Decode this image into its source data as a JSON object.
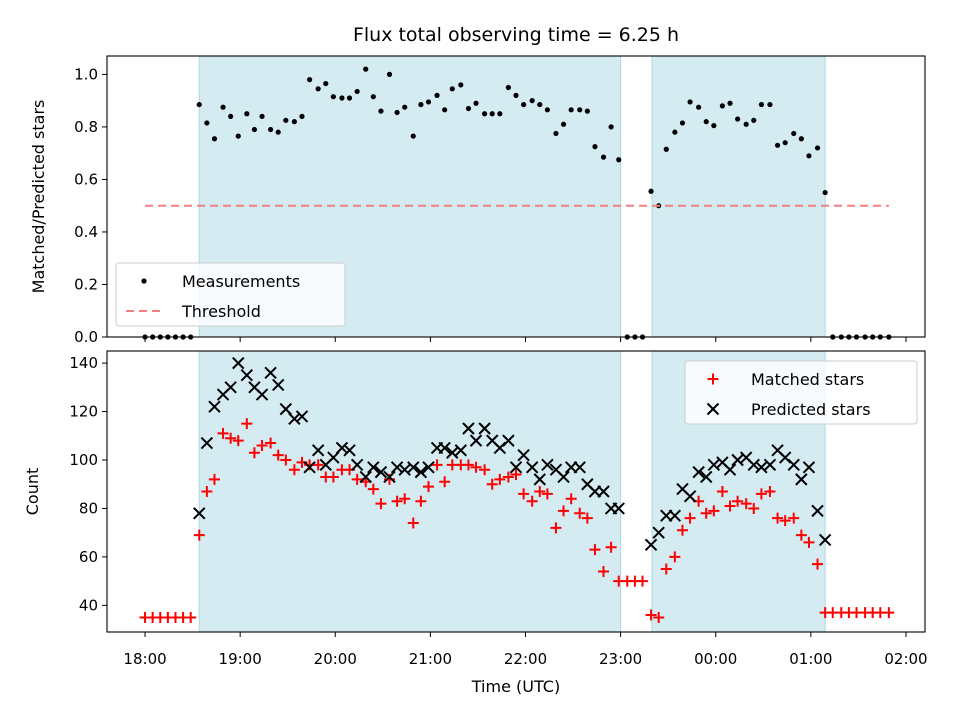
{
  "chart_data": {
    "type": "scatter",
    "title": "Flux total observing time = 6.25 h",
    "xlabel": "Time (UTC)",
    "x_unit": "hours since 18:00 UTC",
    "x_tick_values": [
      0,
      1,
      2,
      3,
      4,
      5,
      6,
      7,
      8
    ],
    "x_tick_labels": [
      "18:00",
      "19:00",
      "20:00",
      "21:00",
      "22:00",
      "23:00",
      "00:00",
      "01:00",
      "02:00"
    ],
    "xlim": [
      -0.4,
      8.2
    ],
    "shaded_intervals": [
      [
        0.57,
        5.0
      ],
      [
        5.33,
        7.15
      ]
    ],
    "shade_color": "#add8e6",
    "panels": [
      {
        "name": "ratio",
        "ylabel": "Matched/Predicted stars",
        "ylim": [
          0,
          1.07
        ],
        "y_ticks": [
          0.0,
          0.2,
          0.4,
          0.6,
          0.8,
          1.0
        ],
        "y_tick_labels": [
          "0.0",
          "0.2",
          "0.4",
          "0.6",
          "0.8",
          "1.0"
        ],
        "legend_position": "lower-left",
        "series": [
          {
            "name": "Measurements",
            "marker": "dot",
            "color": "#000000",
            "x": [
              0.0,
              0.08,
              0.16,
              0.24,
              0.32,
              0.4,
              0.48,
              0.57,
              0.65,
              0.73,
              0.82,
              0.9,
              0.98,
              1.07,
              1.15,
              1.23,
              1.32,
              1.4,
              1.48,
              1.57,
              1.65,
              1.73,
              1.82,
              1.9,
              1.98,
              2.07,
              2.15,
              2.23,
              2.32,
              2.4,
              2.48,
              2.57,
              2.65,
              2.73,
              2.82,
              2.9,
              2.98,
              3.07,
              3.15,
              3.23,
              3.32,
              3.4,
              3.48,
              3.57,
              3.65,
              3.73,
              3.82,
              3.9,
              3.98,
              4.07,
              4.15,
              4.23,
              4.32,
              4.4,
              4.48,
              4.57,
              4.65,
              4.73,
              4.82,
              4.9,
              4.98,
              5.07,
              5.15,
              5.23,
              5.32,
              5.4,
              5.48,
              5.57,
              5.65,
              5.73,
              5.82,
              5.9,
              5.98,
              6.07,
              6.15,
              6.23,
              6.32,
              6.4,
              6.48,
              6.57,
              6.65,
              6.73,
              6.82,
              6.9,
              6.98,
              7.07,
              7.15,
              7.23,
              7.32,
              7.4,
              7.48,
              7.57,
              7.65,
              7.73,
              7.82
            ],
            "y": [
              0.0,
              0.0,
              0.0,
              0.0,
              0.0,
              0.0,
              0.0,
              0.885,
              0.815,
              0.755,
              0.875,
              0.84,
              0.765,
              0.85,
              0.79,
              0.84,
              0.79,
              0.78,
              0.825,
              0.82,
              0.84,
              0.98,
              0.945,
              0.965,
              0.915,
              0.91,
              0.91,
              0.935,
              1.02,
              0.915,
              0.86,
              1.0,
              0.855,
              0.875,
              0.765,
              0.885,
              0.895,
              0.92,
              0.865,
              0.945,
              0.96,
              0.87,
              0.89,
              0.85,
              0.85,
              0.85,
              0.95,
              0.92,
              0.885,
              0.9,
              0.885,
              0.865,
              0.775,
              0.81,
              0.865,
              0.865,
              0.86,
              0.725,
              0.685,
              0.8,
              0.675,
              0.0,
              0.0,
              0.0,
              0.555,
              0.5,
              0.715,
              0.78,
              0.815,
              0.895,
              0.875,
              0.82,
              0.805,
              0.88,
              0.89,
              0.83,
              0.81,
              0.825,
              0.885,
              0.885,
              0.73,
              0.74,
              0.775,
              0.755,
              0.69,
              0.72,
              0.55,
              0.0,
              0.0,
              0.0,
              0.0,
              0.0,
              0.0,
              0.0,
              0.0
            ]
          },
          {
            "name": "Threshold",
            "marker": "dashed-line",
            "color": "#f08080",
            "x": [
              0.0,
              7.82
            ],
            "y": [
              0.5,
              0.5
            ]
          }
        ]
      },
      {
        "name": "counts",
        "ylabel": "Count",
        "ylim": [
          29,
          145
        ],
        "y_ticks": [
          40,
          60,
          80,
          100,
          120,
          140
        ],
        "y_tick_labels": [
          "40",
          "60",
          "80",
          "100",
          "120",
          "140"
        ],
        "legend_position": "upper-right",
        "series": [
          {
            "name": "Matched stars",
            "marker": "plus",
            "color": "#ff0000",
            "x": [
              0.0,
              0.08,
              0.16,
              0.24,
              0.32,
              0.4,
              0.48,
              0.57,
              0.65,
              0.73,
              0.82,
              0.9,
              0.98,
              1.07,
              1.15,
              1.23,
              1.32,
              1.4,
              1.48,
              1.57,
              1.65,
              1.73,
              1.82,
              1.9,
              1.98,
              2.07,
              2.15,
              2.23,
              2.32,
              2.4,
              2.48,
              2.57,
              2.65,
              2.73,
              2.82,
              2.9,
              2.98,
              3.07,
              3.15,
              3.23,
              3.32,
              3.4,
              3.48,
              3.57,
              3.65,
              3.73,
              3.82,
              3.9,
              3.98,
              4.07,
              4.15,
              4.23,
              4.32,
              4.4,
              4.48,
              4.57,
              4.65,
              4.73,
              4.82,
              4.9,
              4.98,
              5.07,
              5.15,
              5.23,
              5.32,
              5.4,
              5.48,
              5.57,
              5.65,
              5.73,
              5.82,
              5.9,
              5.98,
              6.07,
              6.15,
              6.23,
              6.32,
              6.4,
              6.48,
              6.57,
              6.65,
              6.73,
              6.82,
              6.9,
              6.98,
              7.07,
              7.15,
              7.23,
              7.32,
              7.4,
              7.48,
              7.57,
              7.65,
              7.73,
              7.82
            ],
            "y": [
              35,
              35,
              35,
              35,
              35,
              35,
              35,
              69,
              87,
              92,
              111,
              109,
              108,
              115,
              103,
              106,
              107,
              102,
              100,
              96,
              99,
              98,
              98,
              93,
              93,
              96,
              96,
              92,
              91,
              88,
              82,
              92,
              83,
              84,
              74,
              83,
              89,
              98,
              91,
              98,
              98,
              98,
              97,
              96,
              90,
              92,
              93,
              94,
              86,
              83,
              87,
              86,
              72,
              79,
              84,
              78,
              76,
              63,
              54,
              64,
              50,
              50,
              50,
              50,
              36,
              35,
              55,
              60,
              71,
              76,
              83,
              78,
              79,
              87,
              81,
              83,
              82,
              80,
              86,
              87,
              76,
              75,
              76,
              69,
              66,
              57,
              37,
              37,
              37,
              37,
              37,
              37,
              37,
              37,
              37
            ]
          },
          {
            "name": "Predicted stars",
            "marker": "x",
            "color": "#000000",
            "x": [
              0.57,
              0.65,
              0.73,
              0.82,
              0.9,
              0.98,
              1.07,
              1.15,
              1.23,
              1.32,
              1.4,
              1.48,
              1.57,
              1.65,
              1.73,
              1.82,
              1.9,
              1.98,
              2.07,
              2.15,
              2.23,
              2.32,
              2.4,
              2.48,
              2.57,
              2.65,
              2.73,
              2.82,
              2.9,
              2.98,
              3.07,
              3.15,
              3.23,
              3.32,
              3.4,
              3.48,
              3.57,
              3.65,
              3.73,
              3.82,
              3.9,
              3.98,
              4.07,
              4.15,
              4.23,
              4.32,
              4.4,
              4.48,
              4.57,
              4.65,
              4.73,
              4.82,
              4.9,
              4.98,
              5.32,
              5.4,
              5.48,
              5.57,
              5.65,
              5.73,
              5.82,
              5.9,
              5.98,
              6.07,
              6.15,
              6.23,
              6.32,
              6.4,
              6.48,
              6.57,
              6.65,
              6.73,
              6.82,
              6.9,
              6.98,
              7.07,
              7.15
            ],
            "y": [
              78,
              107,
              122,
              127,
              130,
              140,
              135,
              130,
              127,
              136,
              131,
              121,
              117,
              118,
              97,
              104,
              98,
              101,
              105,
              104,
              98,
              93,
              97,
              95,
              93,
              97,
              96,
              97,
              95,
              97,
              105,
              105,
              103,
              104,
              113,
              108,
              113,
              108,
              105,
              108,
              97,
              102,
              97,
              92,
              98,
              96,
              93,
              97,
              97,
              90,
              87,
              87,
              80,
              80,
              65,
              70,
              77,
              77,
              88,
              85,
              95,
              93,
              98,
              99,
              96,
              100,
              101,
              98,
              97,
              98,
              104,
              101,
              98,
              92,
              97,
              79,
              67
            ]
          }
        ]
      }
    ]
  }
}
